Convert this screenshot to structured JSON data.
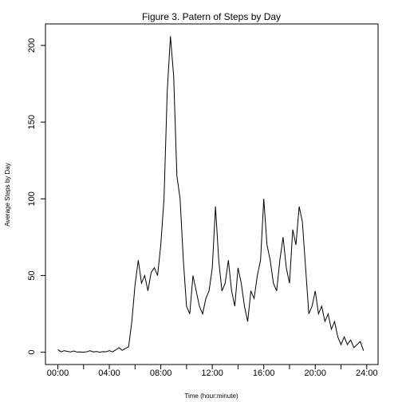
{
  "chart_data": {
    "type": "line",
    "title": "Figure 3. Patern of Steps by Day",
    "xlabel": "Time (hour:minute)",
    "ylabel": "Average Steps by Day",
    "x": [
      0,
      0.25,
      0.5,
      0.75,
      1,
      1.25,
      1.5,
      1.75,
      2,
      2.25,
      2.5,
      2.75,
      3,
      3.25,
      3.5,
      3.75,
      4,
      4.25,
      4.5,
      4.75,
      5,
      5.25,
      5.5,
      5.75,
      6,
      6.25,
      6.5,
      6.75,
      7,
      7.25,
      7.5,
      7.75,
      8,
      8.25,
      8.5,
      8.75,
      9,
      9.25,
      9.5,
      9.75,
      10,
      10.25,
      10.5,
      10.75,
      11,
      11.25,
      11.5,
      11.75,
      12,
      12.25,
      12.5,
      12.75,
      13,
      13.25,
      13.5,
      13.75,
      14,
      14.25,
      14.5,
      14.75,
      15,
      15.25,
      15.5,
      15.75,
      16,
      16.25,
      16.5,
      16.75,
      17,
      17.25,
      17.5,
      17.75,
      18,
      18.25,
      18.5,
      18.75,
      19,
      19.25,
      19.5,
      19.75,
      20,
      20.25,
      20.5,
      20.75,
      21,
      21.25,
      21.5,
      21.75,
      22,
      22.25,
      22.5,
      22.75,
      23,
      23.25,
      23.5,
      23.75
    ],
    "series": [
      {
        "name": "Average Steps by Day",
        "color": "#000000",
        "values": [
          1.7,
          0.3,
          1,
          0.5,
          0.2,
          0.8,
          0.1,
          0.2,
          0,
          0.3,
          1,
          0.2,
          0.5,
          0,
          0.4,
          0.3,
          1,
          0.3,
          1.5,
          3,
          1.2,
          2.5,
          3.5,
          20,
          44,
          60,
          45,
          50,
          40,
          52,
          55,
          50,
          70,
          100,
          170,
          206,
          180,
          115,
          100,
          60,
          30,
          25,
          50,
          40,
          30,
          25,
          35,
          40,
          55,
          95,
          60,
          40,
          45,
          60,
          40,
          30,
          55,
          45,
          30,
          20,
          40,
          35,
          50,
          60,
          100,
          70,
          60,
          45,
          40,
          60,
          75,
          55,
          45,
          80,
          70,
          95,
          85,
          55,
          25,
          30,
          40,
          25,
          30,
          20,
          25,
          15,
          20,
          10,
          5,
          10,
          5,
          8,
          3,
          5,
          7,
          1
        ]
      }
    ],
    "xlim": [
      -0.96,
      24.88
    ],
    "ylim": [
      -8,
      214
    ],
    "xticks": [
      {
        "value": 0,
        "label": "00:00"
      },
      {
        "value": 4,
        "label": "04:00"
      },
      {
        "value": 8,
        "label": "08:00"
      },
      {
        "value": 12,
        "label": "12:00"
      },
      {
        "value": 16,
        "label": "16:00"
      },
      {
        "value": 20,
        "label": "20:00"
      },
      {
        "value": 24,
        "label": "24:00"
      }
    ],
    "xminor_ticks": [
      2,
      6,
      10,
      14,
      18,
      22
    ],
    "yticks": [
      0,
      50,
      100,
      150,
      200
    ]
  }
}
